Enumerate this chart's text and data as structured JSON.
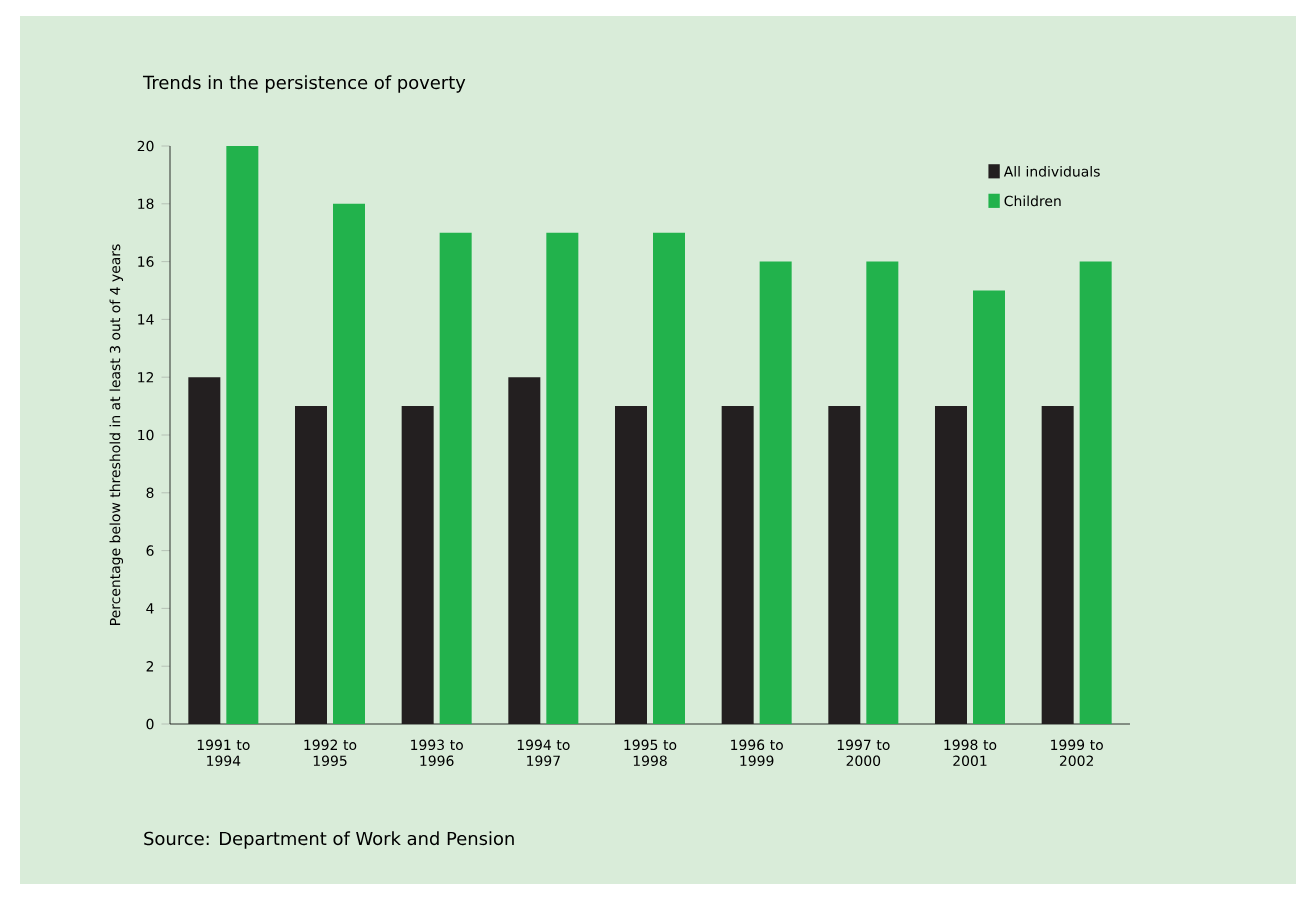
{
  "chart_data": {
    "type": "bar",
    "title": "Trends in the persistence of poverty",
    "ylabel": "Percentage below threshold in at least 3 out of 4 years",
    "categories": [
      "1991 to 1994",
      "1992 to 1995",
      "1993 to 1996",
      "1994 to 1997",
      "1995 to 1998",
      "1996 to 1999",
      "1997 to 2000",
      "1998 to 2001",
      "1999 to 2002"
    ],
    "series": [
      {
        "name": "All individuals",
        "color": "#231f20",
        "values": [
          12,
          11,
          11,
          12,
          11,
          11,
          11,
          11,
          11
        ]
      },
      {
        "name": "Children",
        "color": "#22b24c",
        "values": [
          20,
          18,
          17,
          17,
          17,
          16,
          16,
          15,
          16
        ]
      }
    ],
    "ylim": [
      0,
      20
    ],
    "yticks": [
      0,
      2,
      4,
      6,
      8,
      10,
      12,
      14,
      16,
      18,
      20
    ],
    "grid": false,
    "legend": "top right",
    "annotations": [
      "Source: Department of Work and Pension"
    ]
  }
}
